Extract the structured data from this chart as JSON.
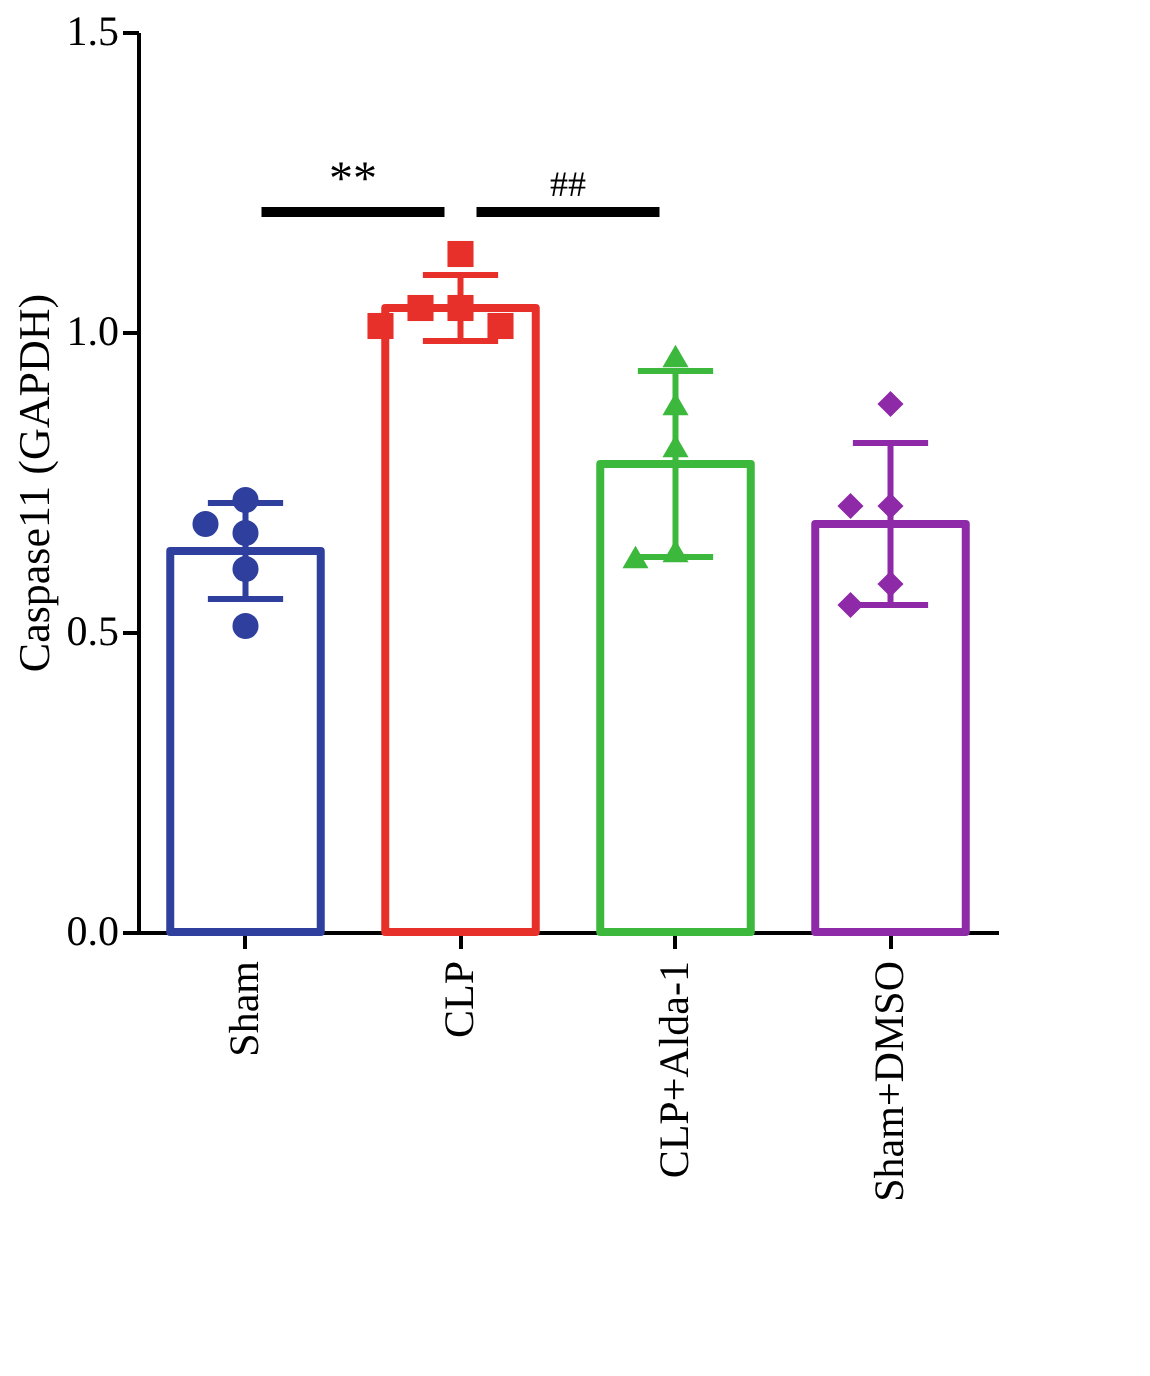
{
  "chart_data": {
    "type": "bar",
    "ylabel": "Caspase11 (GAPDH)",
    "categories": [
      "Sham",
      "CLP",
      "CLP+Alda-1",
      "Sham+DMSO"
    ],
    "series": [
      {
        "values": [
          0.635,
          1.04,
          0.78,
          0.68
        ],
        "colors": [
          "#2e3f9e",
          "#e8302a",
          "#3cb93c",
          "#8e2aa8"
        ],
        "errors": [
          0.08,
          0.055,
          0.155,
          0.135
        ]
      },
      {
        "type": "scatter",
        "color": "#2e3f9e",
        "marker": "circle",
        "x": [
          "Sham",
          "Sham",
          "Sham",
          "Sham",
          "Sham"
        ],
        "values": [
          0.72,
          0.68,
          0.665,
          0.605,
          0.51
        ]
      },
      {
        "type": "scatter",
        "color": "#e8302a",
        "marker": "square",
        "x": [
          "CLP",
          "CLP",
          "CLP",
          "CLP",
          "CLP"
        ],
        "values": [
          1.13,
          1.04,
          1.04,
          1.01,
          1.01
        ]
      },
      {
        "type": "scatter",
        "color": "#3cb93c",
        "marker": "triangle",
        "x": [
          "CLP+Alda-1",
          "CLP+Alda-1",
          "CLP+Alda-1",
          "CLP+Alda-1",
          "CLP+Alda-1"
        ],
        "values": [
          0.96,
          0.88,
          0.81,
          0.635,
          0.625
        ]
      },
      {
        "type": "scatter",
        "color": "#8e2aa8",
        "marker": "diamond",
        "x": [
          "Sham+DMSO",
          "Sham+DMSO",
          "Sham+DMSO",
          "Sham+DMSO",
          "Sham+DMSO"
        ],
        "values": [
          0.88,
          0.71,
          0.71,
          0.58,
          0.545
        ]
      }
    ],
    "ylim": [
      0,
      1.5
    ],
    "yticks": [
      {
        "value": 0,
        "label": "0.0"
      },
      {
        "value": 0.5,
        "label": "0.5"
      },
      {
        "value": 1,
        "label": "1.0"
      },
      {
        "value": 1.5,
        "label": "1.5"
      }
    ],
    "annotations": [
      "**",
      "##"
    ],
    "grid": false,
    "legend": false
  }
}
